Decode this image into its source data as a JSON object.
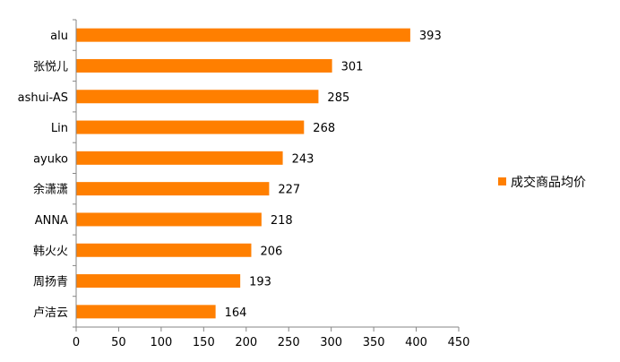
{
  "chart_data": {
    "type": "bar",
    "orientation": "horizontal",
    "categories": [
      "alu",
      "张悦儿",
      "ashui-AS",
      "Lin",
      "ayuko",
      "余潇潇",
      "ANNA",
      "韩火火",
      "周扬青",
      "卢洁云"
    ],
    "series": [
      {
        "name": "成交商品均价",
        "values": [
          393,
          301,
          285,
          268,
          243,
          227,
          218,
          206,
          193,
          164
        ],
        "color": "#FF7F00"
      }
    ],
    "data_labels": [
      "393",
      "301",
      "285",
      "268",
      "243",
      "227",
      "218",
      "206",
      "193",
      "164"
    ],
    "xlim": [
      0,
      450
    ],
    "x_ticks": [
      0,
      50,
      100,
      150,
      200,
      250,
      300,
      350,
      400,
      450
    ],
    "x_tick_labels": [
      "0",
      "50",
      "100",
      "150",
      "200",
      "250",
      "300",
      "350",
      "400",
      "450"
    ],
    "grid": false,
    "legend_position": "right"
  }
}
